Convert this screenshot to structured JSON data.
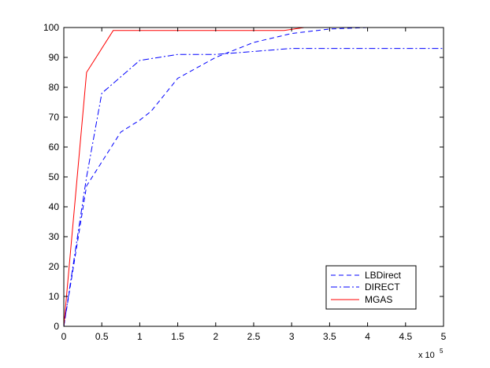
{
  "chart_data": {
    "type": "line",
    "title": "",
    "xlabel": "",
    "ylabel": "",
    "xlim": [
      0,
      5
    ],
    "ylim": [
      0,
      100
    ],
    "x_tick_labels": [
      "0",
      "0.5",
      "1",
      "1.5",
      "2",
      "2.5",
      "3",
      "3.5",
      "4",
      "4.5",
      "5"
    ],
    "y_tick_labels": [
      "0",
      "10",
      "20",
      "30",
      "40",
      "50",
      "60",
      "70",
      "80",
      "90",
      "100"
    ],
    "x_exponent": {
      "base": "x 10",
      "power": "5"
    },
    "grid": false,
    "legend_position": "bottom-right",
    "series": [
      {
        "name": "LBDirect",
        "color": "#0000ff",
        "style": "dashed",
        "x": [
          0,
          0.3,
          0.5,
          0.75,
          1.0,
          1.15,
          1.5,
          2.0,
          2.5,
          3.0,
          3.5,
          4.0
        ],
        "y": [
          0,
          47,
          55,
          65,
          69,
          72,
          83,
          90,
          95,
          98,
          99.5,
          100
        ]
      },
      {
        "name": "DIRECT",
        "color": "#0000ff",
        "style": "dashdot",
        "x": [
          0,
          0.3,
          0.5,
          1.0,
          1.5,
          2.0,
          2.5,
          3.0,
          3.5,
          4.0,
          4.5,
          5.0
        ],
        "y": [
          0,
          50,
          78,
          89,
          91,
          91,
          92,
          93,
          93,
          93,
          93,
          93
        ]
      },
      {
        "name": "MGAS",
        "color": "#ff0000",
        "style": "solid",
        "x": [
          0,
          0.3,
          0.65,
          2.9,
          3.3,
          5.0
        ],
        "y": [
          0,
          85,
          99,
          99,
          100.5,
          100.5
        ]
      }
    ]
  }
}
